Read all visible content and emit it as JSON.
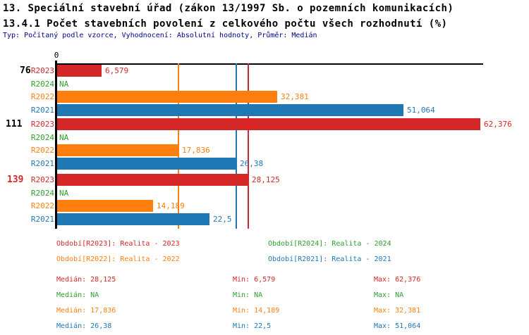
{
  "header": {
    "title_line1": "13. Speciální stavební úřad (zákon 13/1997 Sb. o pozemních komunikacích)",
    "title_line2": "13.4.1 Počet stavebních povolení z celkového počtu všech rozhodnutí (%)",
    "subtitle": "Typ: Počítaný podle vzorce, Vyhodnocení: Absolutní hodnoty, Průměr: Medián"
  },
  "colors": {
    "red": "#d62728",
    "green": "#2ca02c",
    "orange": "#ff7f0e",
    "blue": "#1f77b4",
    "axis": "#000000",
    "subtitle": "#00008b"
  },
  "chart_data": {
    "type": "bar",
    "orientation": "horizontal",
    "value_unit": "%",
    "x_axis": {
      "origin_label": "0",
      "min": 0,
      "max_shown": 62.376,
      "gridlines": false
    },
    "series_order": [
      "R2023",
      "R2024",
      "R2022",
      "R2021"
    ],
    "series_colors": {
      "R2023": "#d62728",
      "R2024": "#2ca02c",
      "R2022": "#ff7f0e",
      "R2021": "#1f77b4"
    },
    "groups": [
      {
        "label": "76",
        "label_color": "#000000",
        "bars": [
          {
            "series": "R2023",
            "value": 6.579,
            "display": "6,579"
          },
          {
            "series": "R2024",
            "value": null,
            "display": "NA"
          },
          {
            "series": "R2022",
            "value": 32.381,
            "display": "32,381"
          },
          {
            "series": "R2021",
            "value": 51.064,
            "display": "51,064"
          }
        ]
      },
      {
        "label": "111",
        "label_color": "#000000",
        "bars": [
          {
            "series": "R2023",
            "value": 62.376,
            "display": "62,376"
          },
          {
            "series": "R2024",
            "value": null,
            "display": "NA"
          },
          {
            "series": "R2022",
            "value": 17.836,
            "display": "17,836"
          },
          {
            "series": "R2021",
            "value": 26.38,
            "display": "26,38"
          }
        ]
      },
      {
        "label": "139",
        "label_color": "#d62728",
        "bars": [
          {
            "series": "R2023",
            "value": 28.125,
            "display": "28,125"
          },
          {
            "series": "R2024",
            "value": null,
            "display": "NA"
          },
          {
            "series": "R2022",
            "value": 14.189,
            "display": "14,189"
          },
          {
            "series": "R2021",
            "value": 22.5,
            "display": "22,5"
          }
        ]
      }
    ],
    "median_lines": [
      {
        "series": "R2022",
        "value": 17.836,
        "color": "#ff7f0e"
      },
      {
        "series": "R2021",
        "value": 26.38,
        "color": "#1f77b4"
      },
      {
        "series": "R2023",
        "value": 28.125,
        "color": "#d62728"
      }
    ]
  },
  "legend": [
    {
      "text": "Období[R2023]: Realita - 2023",
      "color": "#d62728"
    },
    {
      "text": "Období[R2024]: Realita - 2024",
      "color": "#2ca02c"
    },
    {
      "text": "Období[R2022]: Realita - 2022",
      "color": "#ff7f0e"
    },
    {
      "text": "Období[R2021]: Realita - 2021",
      "color": "#1f77b4"
    }
  ],
  "stats": [
    {
      "series": "R2023",
      "color": "#d62728",
      "median": "Medián: 28,125",
      "min": "Min: 6,579",
      "max": "Max: 62,376"
    },
    {
      "series": "R2024",
      "color": "#2ca02c",
      "median": "Medián: NA",
      "min": "Min: NA",
      "max": "Max: NA"
    },
    {
      "series": "R2022",
      "color": "#ff7f0e",
      "median": "Medián: 17,836",
      "min": "Min: 14,189",
      "max": "Max: 32,381"
    },
    {
      "series": "R2021",
      "color": "#1f77b4",
      "median": "Medián: 26,38",
      "min": "Min: 22,5",
      "max": "Max: 51,064"
    }
  ]
}
